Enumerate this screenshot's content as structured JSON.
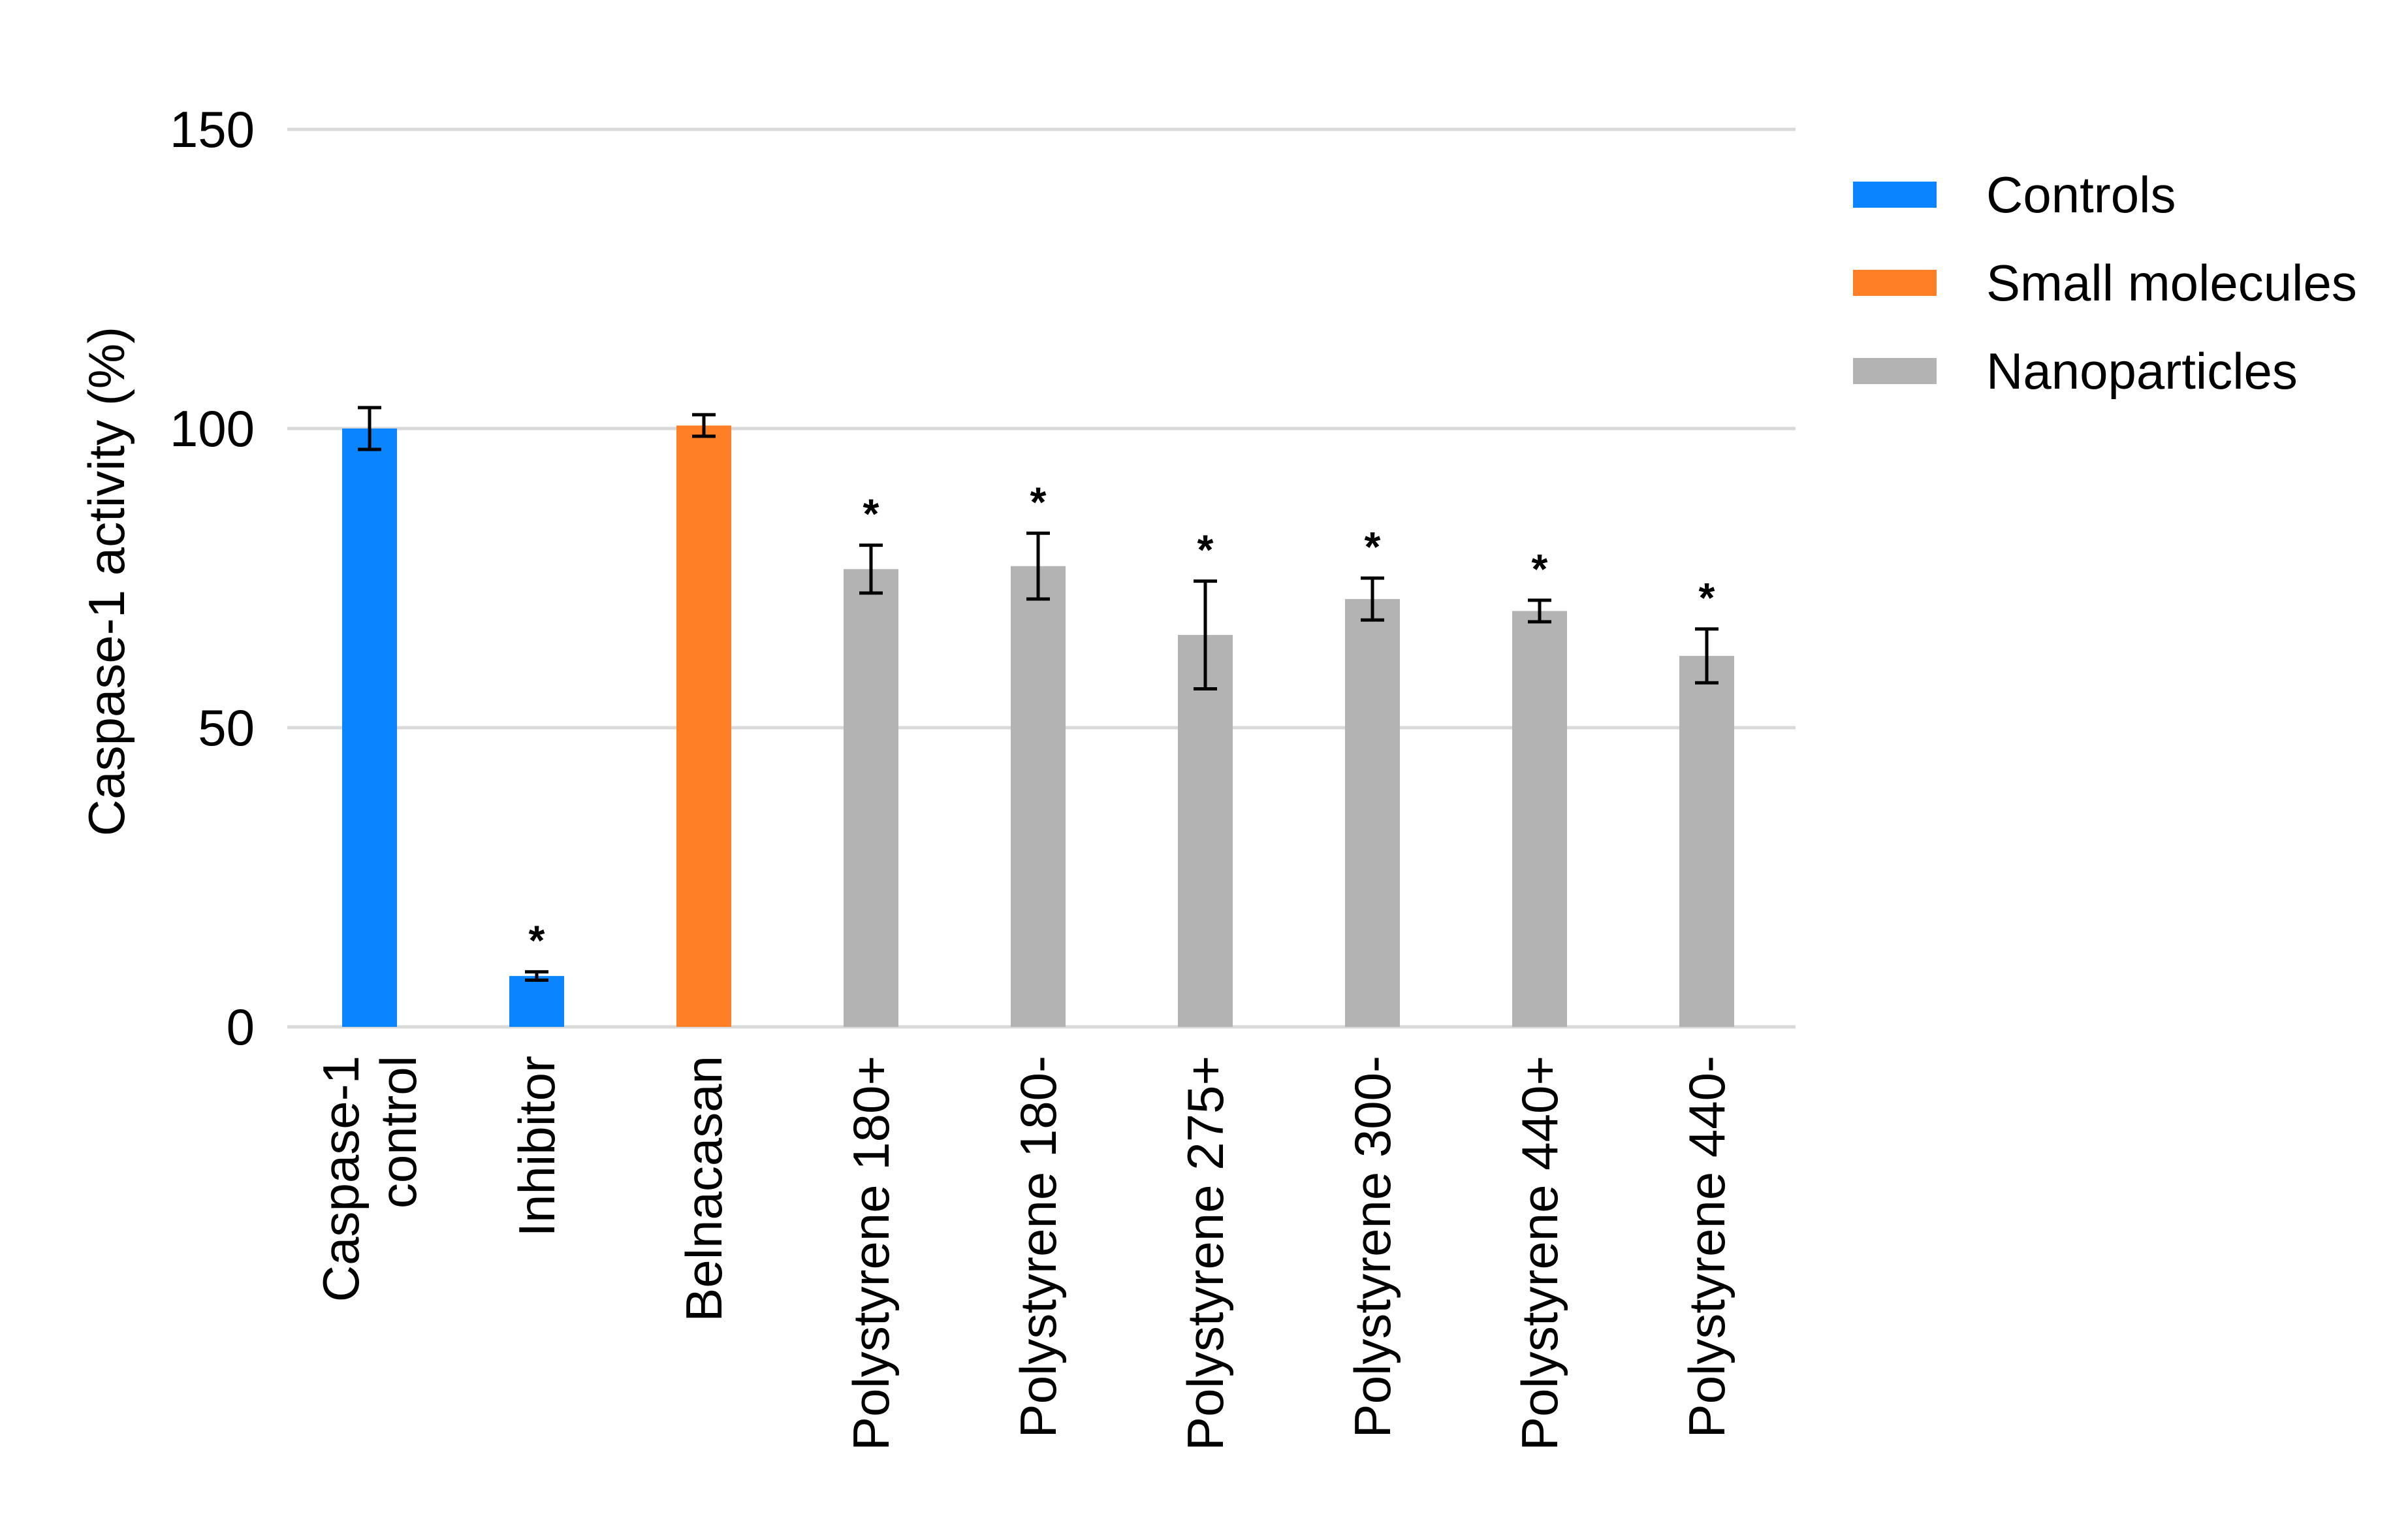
{
  "chart_data": {
    "type": "bar",
    "title": "",
    "xlabel": "",
    "ylabel": "Caspase-1 activity (%)",
    "ylim": [
      0,
      150
    ],
    "yticks": [
      0,
      50,
      100,
      150
    ],
    "grid": true,
    "legend_position": "right",
    "groups": [
      {
        "name": "Controls",
        "color": "#0a84ff"
      },
      {
        "name": "Small molecules",
        "color": "#ff7f27"
      },
      {
        "name": "Nanoparticles",
        "color": "#b3b3b3"
      }
    ],
    "bars": [
      {
        "category": [
          "Caspase-1",
          "control"
        ],
        "group": "Controls",
        "value": 100,
        "error": 3.5,
        "significant": false
      },
      {
        "category": [
          "Inhibitor"
        ],
        "group": "Controls",
        "value": 8.5,
        "error": 0.7,
        "significant": true
      },
      {
        "category": [
          "Belnacasan"
        ],
        "group": "Small molecules",
        "value": 100.5,
        "error": 1.8,
        "significant": false
      },
      {
        "category": [
          "Polystyrene 180+"
        ],
        "group": "Nanoparticles",
        "value": 76.5,
        "error": 4.0,
        "significant": true
      },
      {
        "category": [
          "Polystyrene 180-"
        ],
        "group": "Nanoparticles",
        "value": 77,
        "error": 5.5,
        "significant": true
      },
      {
        "category": [
          "Polystyrene 275+"
        ],
        "group": "Nanoparticles",
        "value": 65.5,
        "error": 9.0,
        "significant": true
      },
      {
        "category": [
          "Polystyrene 300-"
        ],
        "group": "Nanoparticles",
        "value": 71.5,
        "error": 3.5,
        "significant": true
      },
      {
        "category": [
          "Polystyrene 440+"
        ],
        "group": "Nanoparticles",
        "value": 69.5,
        "error": 1.8,
        "significant": true
      },
      {
        "category": [
          "Polystyrene 440-"
        ],
        "group": "Nanoparticles",
        "value": 62,
        "error": 4.5,
        "significant": true
      }
    ],
    "significance_symbol": "*"
  }
}
